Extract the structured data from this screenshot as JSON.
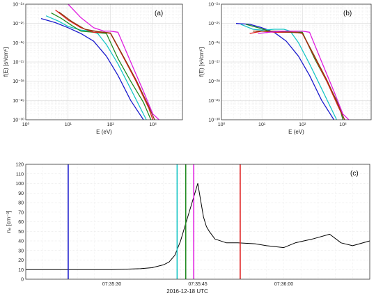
{
  "chart_data": [
    {
      "type": "line",
      "panel_label": "(a)",
      "xlabel": "E (eV)",
      "ylabel": "f(E) [s³/cm⁶]",
      "xscale": "log",
      "yscale": "log",
      "xlim": [
        1,
        5000
      ],
      "ylim": [
        1e-30,
        1e-24
      ],
      "x_ticks": [
        "10⁰",
        "10¹",
        "10²",
        "10³"
      ],
      "y_ticks": [
        "10⁻³⁰",
        "10⁻²⁹",
        "10⁻²⁸",
        "10⁻²⁷",
        "10⁻²⁶",
        "10⁻²⁵",
        "10⁻²⁴"
      ],
      "grid": true,
      "series": [
        {
          "color": "#1a1acc",
          "x": [
            2.3,
            5,
            10,
            20,
            40,
            80,
            150,
            300,
            600
          ],
          "y": [
            1.8e-25,
            1.1e-25,
            6e-26,
            3e-26,
            1.2e-26,
            2e-27,
            2e-28,
            1e-29,
            1e-30
          ]
        },
        {
          "color": "#19c6c6",
          "x": [
            3,
            6,
            10,
            20,
            35,
            50,
            80,
            150,
            300,
            700
          ],
          "y": [
            2.5e-25,
            1.3e-25,
            7e-26,
            4.5e-26,
            4e-26,
            3e-26,
            8e-27,
            8e-28,
            4e-29,
            1e-30
          ]
        },
        {
          "color": "#1f8a1f",
          "x": [
            4,
            7,
            12,
            20,
            40,
            80,
            150,
            300,
            600,
            900
          ],
          "y": [
            3.5e-25,
            1.8e-25,
            8e-26,
            4e-26,
            3.5e-26,
            3e-26,
            1.5e-27,
            1e-28,
            8e-30,
            1e-30
          ]
        },
        {
          "color": "#e02020",
          "x": [
            5,
            10,
            20,
            40,
            70,
            100,
            200,
            400,
            800,
            1000
          ],
          "y": [
            5e-25,
            1.5e-25,
            6e-26,
            3.5e-26,
            3.5e-26,
            3e-26,
            1.8e-27,
            1e-28,
            4e-30,
            1e-30
          ]
        },
        {
          "color": "#8a3a10",
          "x": [
            6,
            12,
            25,
            50,
            100,
            200,
            400,
            800,
            1100
          ],
          "y": [
            4e-25,
            1.3e-25,
            5e-26,
            3.8e-26,
            3.2e-26,
            2e-27,
            1.2e-28,
            5e-30,
            1e-30
          ]
        },
        {
          "color": "#e01ee0",
          "x": [
            10,
            20,
            40,
            70,
            100,
            150,
            300,
            600,
            1000,
            1400
          ],
          "y": [
            1e-24,
            2e-25,
            6e-26,
            4e-26,
            4e-26,
            3.5e-26,
            1e-27,
            3e-29,
            2e-30,
            1e-30
          ]
        }
      ]
    },
    {
      "type": "line",
      "panel_label": "(b)",
      "xlabel": "E (eV)",
      "ylabel": "f(E) [s³/cm⁶]",
      "xscale": "log",
      "yscale": "log",
      "xlim": [
        1,
        5000
      ],
      "ylim": [
        1e-30,
        1e-24
      ],
      "x_ticks": [
        "10⁰",
        "10¹",
        "10²",
        "10³"
      ],
      "y_ticks": [
        "10⁻³⁰",
        "10⁻²⁹",
        "10⁻²⁸",
        "10⁻²⁷",
        "10⁻²⁶",
        "10⁻²⁵",
        "10⁻²⁴"
      ],
      "grid": true,
      "series": [
        {
          "color": "#1a1acc",
          "x": [
            2.3,
            5,
            10,
            20,
            40,
            80,
            150,
            300,
            600
          ],
          "y": [
            1e-25,
            9e-26,
            6e-26,
            3.5e-26,
            1.2e-26,
            2e-27,
            2e-28,
            1e-29,
            1e-30
          ]
        },
        {
          "color": "#19c6c6",
          "x": [
            3,
            6,
            10,
            20,
            35,
            50,
            80,
            150,
            300,
            700
          ],
          "y": [
            9e-26,
            5e-26,
            4.5e-26,
            5e-26,
            5e-26,
            4e-26,
            1e-26,
            8e-28,
            4e-29,
            1e-30
          ]
        },
        {
          "color": "#1f8a1f",
          "x": [
            4,
            8,
            15,
            30,
            60,
            100,
            200,
            400,
            800,
            1000
          ],
          "y": [
            9e-26,
            6e-26,
            4e-26,
            4e-26,
            3.5e-26,
            3.5e-26,
            1.5e-27,
            1e-28,
            6e-30,
            1e-30
          ]
        },
        {
          "color": "#e02020",
          "x": [
            5,
            10,
            20,
            40,
            70,
            100,
            200,
            400,
            800,
            1100
          ],
          "y": [
            3e-26,
            4e-26,
            3.5e-26,
            3.5e-26,
            3.5e-26,
            3e-26,
            1.8e-27,
            1e-28,
            4e-30,
            1e-30
          ]
        },
        {
          "color": "#8a3a10",
          "x": [
            6,
            12,
            25,
            50,
            100,
            200,
            400,
            800,
            1100
          ],
          "y": [
            4e-26,
            4e-26,
            3.8e-26,
            3.5e-26,
            3.2e-26,
            2e-27,
            1.2e-28,
            5e-30,
            1e-30
          ]
        },
        {
          "color": "#e01ee0",
          "x": [
            8,
            15,
            30,
            60,
            100,
            150,
            300,
            600,
            1000,
            1400
          ],
          "y": [
            3e-26,
            3.5e-26,
            4e-26,
            4e-26,
            4e-26,
            3.5e-26,
            1e-27,
            3e-29,
            2e-30,
            1e-30
          ]
        }
      ]
    },
    {
      "type": "line",
      "panel_label": "(c)",
      "xlabel": "2016-12-18 UTC",
      "ylabel": "nₑ [cm⁻³]",
      "xlim": [
        0,
        60
      ],
      "ylim": [
        0,
        120
      ],
      "x_tick_values": [
        15,
        30,
        45,
        60
      ],
      "x_tick_labels": [
        "07:35:30",
        "07:35:45",
        "07:36:00",
        ""
      ],
      "y_ticks": [
        0,
        10,
        20,
        30,
        40,
        50,
        60,
        70,
        80,
        90,
        100,
        110,
        120
      ],
      "grid": true,
      "trace": {
        "color": "#000000",
        "x": [
          0,
          5,
          10,
          15,
          20,
          22,
          24,
          25,
          26,
          27,
          28,
          29,
          30,
          31,
          31.5,
          32,
          33,
          35,
          37,
          40,
          42,
          45,
          47,
          50,
          53,
          55,
          57,
          60
        ],
        "y": [
          10,
          10,
          10,
          10,
          11,
          12,
          15,
          18,
          25,
          40,
          60,
          80,
          100,
          65,
          55,
          50,
          42,
          38,
          38,
          37,
          35,
          33,
          38,
          42,
          47,
          38,
          35,
          40
        ]
      },
      "markers": [
        {
          "color": "#1a1acc",
          "x": 7.4
        },
        {
          "color": "#19c6c6",
          "x": 26.4
        },
        {
          "color": "#1f8a1f",
          "x": 27.9
        },
        {
          "color": "#e01ee0",
          "x": 29.3
        },
        {
          "color": "#e02020",
          "x": 37.4
        }
      ]
    }
  ]
}
